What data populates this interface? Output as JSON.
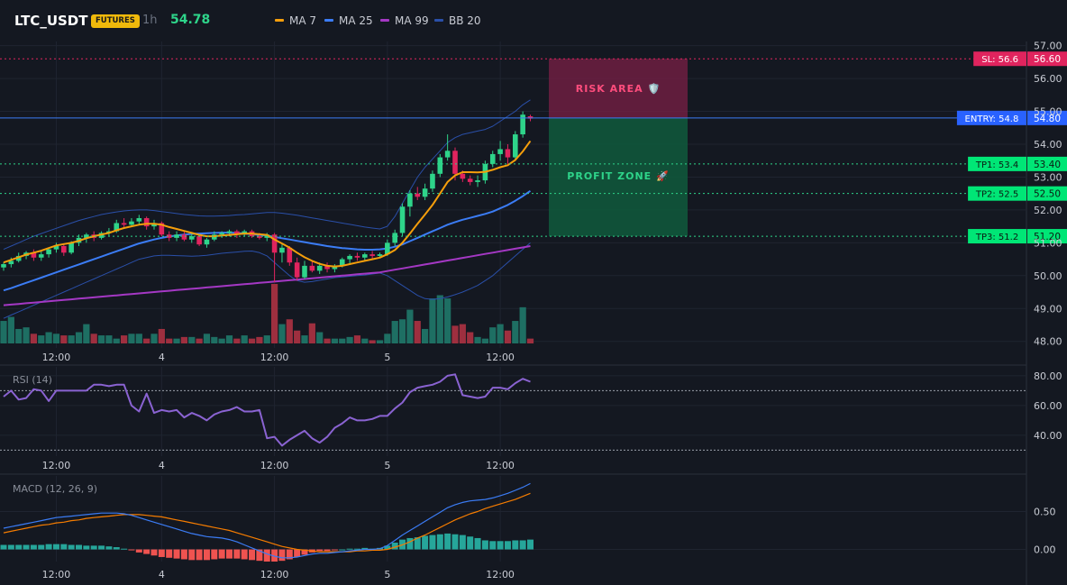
{
  "header": {
    "symbol": "LTC_USDT",
    "badge": "FUTURES",
    "timeframe": "1h",
    "last_price": "54.78",
    "legend": [
      {
        "label": "MA 7",
        "color": "#f59e0b"
      },
      {
        "label": "MA 25",
        "color": "#3b7cf5"
      },
      {
        "label": "MA 99",
        "color": "#a438c4"
      },
      {
        "label": "BB 20",
        "color": "#2a4fa8"
      }
    ]
  },
  "colors": {
    "up": "#26a69a",
    "down": "#ef5350",
    "up_candle": "#2ed48a",
    "down_candle": "#e0245e",
    "background": "#141821",
    "ma7": "#f59e0b",
    "ma25": "#3b7cf5",
    "ma99": "#a438c4",
    "bb": "#2a4fa8",
    "rsi": "#8a63d2",
    "macd": "#3b7cf5",
    "signal": "#f57c00"
  },
  "chart_data": [
    {
      "type": "candlestick",
      "name": "price",
      "ylim": [
        47.8,
        57.1
      ],
      "y_ticks": [
        "57.00",
        "56.00",
        "55.00",
        "54.00",
        "53.00",
        "52.00",
        "51.00",
        "50.00",
        "49.00",
        "48.00"
      ],
      "x_ticks": [
        "12:00",
        "4",
        "12:00",
        "5",
        "12:00"
      ],
      "x_tick_index": [
        7,
        21,
        36,
        51,
        66
      ],
      "ohlc": [
        [
          50.25,
          50.4,
          50.15,
          50.35
        ],
        [
          50.35,
          50.55,
          50.25,
          50.45
        ],
        [
          50.45,
          50.7,
          50.4,
          50.6
        ],
        [
          50.6,
          50.75,
          50.5,
          50.7
        ],
        [
          50.7,
          50.8,
          50.45,
          50.55
        ],
        [
          50.55,
          50.75,
          50.45,
          50.65
        ],
        [
          50.65,
          50.85,
          50.55,
          50.8
        ],
        [
          50.8,
          51.0,
          50.7,
          50.9
        ],
        [
          50.9,
          50.95,
          50.6,
          50.7
        ],
        [
          50.7,
          51.05,
          50.65,
          51.0
        ],
        [
          51.0,
          51.25,
          50.9,
          51.15
        ],
        [
          51.15,
          51.3,
          51.0,
          51.25
        ],
        [
          51.25,
          51.35,
          51.05,
          51.15
        ],
        [
          51.15,
          51.35,
          51.1,
          51.3
        ],
        [
          51.3,
          51.45,
          51.2,
          51.35
        ],
        [
          51.35,
          51.7,
          51.3,
          51.6
        ],
        [
          51.6,
          51.75,
          51.45,
          51.55
        ],
        [
          51.55,
          51.75,
          51.5,
          51.65
        ],
        [
          51.65,
          51.85,
          51.55,
          51.75
        ],
        [
          51.75,
          51.8,
          51.4,
          51.5
        ],
        [
          51.5,
          51.7,
          51.4,
          51.6
        ],
        [
          51.6,
          51.65,
          51.2,
          51.25
        ],
        [
          51.25,
          51.35,
          51.05,
          51.15
        ],
        [
          51.15,
          51.35,
          51.05,
          51.25
        ],
        [
          51.25,
          51.35,
          51.05,
          51.1
        ],
        [
          51.1,
          51.3,
          51.0,
          51.2
        ],
        [
          51.2,
          51.25,
          50.9,
          50.95
        ],
        [
          50.95,
          51.15,
          50.85,
          51.1
        ],
        [
          51.1,
          51.35,
          51.05,
          51.25
        ],
        [
          51.25,
          51.35,
          51.15,
          51.3
        ],
        [
          51.3,
          51.4,
          51.2,
          51.35
        ],
        [
          51.35,
          51.4,
          51.15,
          51.25
        ],
        [
          51.25,
          51.4,
          51.2,
          51.35
        ],
        [
          51.35,
          51.4,
          51.15,
          51.2
        ],
        [
          51.2,
          51.3,
          51.1,
          51.15
        ],
        [
          51.15,
          51.3,
          51.05,
          51.25
        ],
        [
          51.25,
          51.3,
          49.8,
          50.7
        ],
        [
          50.7,
          50.95,
          50.4,
          50.85
        ],
        [
          50.85,
          50.9,
          50.3,
          50.4
        ],
        [
          50.4,
          50.55,
          49.85,
          49.95
        ],
        [
          49.95,
          50.45,
          49.9,
          50.3
        ],
        [
          50.3,
          50.45,
          50.1,
          50.15
        ],
        [
          50.15,
          50.4,
          50.05,
          50.3
        ],
        [
          50.3,
          50.4,
          50.1,
          50.2
        ],
        [
          50.2,
          50.35,
          50.1,
          50.3
        ],
        [
          50.3,
          50.55,
          50.25,
          50.5
        ],
        [
          50.5,
          50.65,
          50.35,
          50.6
        ],
        [
          50.6,
          50.7,
          50.45,
          50.55
        ],
        [
          50.55,
          50.7,
          50.45,
          50.65
        ],
        [
          50.65,
          50.75,
          50.5,
          50.6
        ],
        [
          50.6,
          50.7,
          50.55,
          50.65
        ],
        [
          50.65,
          51.1,
          50.6,
          51.0
        ],
        [
          51.0,
          51.4,
          50.9,
          51.3
        ],
        [
          51.3,
          52.2,
          51.2,
          52.1
        ],
        [
          52.1,
          52.6,
          51.8,
          52.5
        ],
        [
          52.5,
          52.7,
          52.3,
          52.4
        ],
        [
          52.4,
          52.8,
          52.3,
          52.65
        ],
        [
          52.65,
          53.2,
          52.55,
          53.1
        ],
        [
          53.1,
          53.7,
          53.0,
          53.6
        ],
        [
          53.6,
          54.3,
          53.5,
          53.8
        ],
        [
          53.8,
          53.9,
          52.9,
          53.1
        ],
        [
          53.1,
          53.2,
          52.85,
          52.95
        ],
        [
          52.95,
          53.05,
          52.75,
          52.85
        ],
        [
          52.85,
          53.05,
          52.7,
          52.9
        ],
        [
          52.9,
          53.5,
          52.8,
          53.4
        ],
        [
          53.4,
          53.8,
          53.3,
          53.7
        ],
        [
          53.7,
          54.1,
          53.5,
          53.85
        ],
        [
          53.85,
          54.0,
          53.4,
          53.6
        ],
        [
          53.6,
          54.4,
          53.5,
          54.3
        ],
        [
          54.3,
          55.0,
          54.2,
          54.9
        ],
        [
          54.85,
          54.9,
          54.7,
          54.78
        ]
      ],
      "ma7": [
        50.4,
        50.48,
        50.56,
        50.64,
        50.7,
        50.76,
        50.84,
        50.92,
        50.96,
        51.0,
        51.06,
        51.14,
        51.2,
        51.25,
        51.3,
        51.38,
        51.45,
        51.5,
        51.55,
        51.58,
        51.58,
        51.55,
        51.48,
        51.42,
        51.36,
        51.3,
        51.24,
        51.2,
        51.2,
        51.22,
        51.24,
        51.26,
        51.28,
        51.28,
        51.26,
        51.24,
        51.1,
        50.98,
        50.85,
        50.7,
        50.56,
        50.45,
        50.36,
        50.3,
        50.28,
        50.3,
        50.35,
        50.4,
        50.45,
        50.5,
        50.55,
        50.65,
        50.78,
        51.0,
        51.28,
        51.58,
        51.86,
        52.15,
        52.5,
        52.85,
        53.05,
        53.15,
        53.15,
        53.14,
        53.16,
        53.22,
        53.3,
        53.36,
        53.52,
        53.78,
        54.1
      ],
      "ma25": [
        49.55,
        49.62,
        49.7,
        49.78,
        49.86,
        49.94,
        50.02,
        50.1,
        50.18,
        50.26,
        50.34,
        50.42,
        50.5,
        50.58,
        50.66,
        50.74,
        50.82,
        50.9,
        50.98,
        51.04,
        51.1,
        51.15,
        51.19,
        51.22,
        51.25,
        51.27,
        51.28,
        51.29,
        51.3,
        51.31,
        51.31,
        51.3,
        51.28,
        51.26,
        51.24,
        51.22,
        51.18,
        51.14,
        51.1,
        51.06,
        51.02,
        50.98,
        50.94,
        50.9,
        50.87,
        50.84,
        50.82,
        50.8,
        50.79,
        50.79,
        50.8,
        50.83,
        50.88,
        50.95,
        51.05,
        51.15,
        51.25,
        51.35,
        51.45,
        51.55,
        51.63,
        51.7,
        51.76,
        51.82,
        51.88,
        51.95,
        52.05,
        52.15,
        52.28,
        52.42,
        52.58
      ],
      "ma99": [
        49.1,
        49.12,
        49.14,
        49.16,
        49.18,
        49.2,
        49.22,
        49.24,
        49.26,
        49.28,
        49.3,
        49.32,
        49.34,
        49.36,
        49.38,
        49.4,
        49.42,
        49.44,
        49.46,
        49.48,
        49.5,
        49.52,
        49.54,
        49.56,
        49.58,
        49.6,
        49.62,
        49.64,
        49.66,
        49.68,
        49.7,
        49.72,
        49.74,
        49.76,
        49.78,
        49.8,
        49.82,
        49.84,
        49.86,
        49.88,
        49.9,
        49.92,
        49.94,
        49.96,
        49.98,
        50.0,
        50.02,
        50.04,
        50.06,
        50.08,
        50.1,
        50.14,
        50.18,
        50.22,
        50.26,
        50.3,
        50.34,
        50.38,
        50.42,
        50.46,
        50.5,
        50.54,
        50.58,
        50.62,
        50.66,
        50.7,
        50.74,
        50.78,
        50.82,
        50.86,
        50.9
      ],
      "bb_upper": [
        50.8,
        50.9,
        51.0,
        51.1,
        51.2,
        51.28,
        51.36,
        51.44,
        51.52,
        51.6,
        51.68,
        51.74,
        51.8,
        51.86,
        51.9,
        51.94,
        51.97,
        51.99,
        52.0,
        52.0,
        51.98,
        51.95,
        51.92,
        51.89,
        51.86,
        51.84,
        51.82,
        51.81,
        51.81,
        51.82,
        51.83,
        51.85,
        51.86,
        51.88,
        51.9,
        51.92,
        51.92,
        51.9,
        51.87,
        51.84,
        51.8,
        51.76,
        51.72,
        51.68,
        51.64,
        51.6,
        51.56,
        51.52,
        51.48,
        51.45,
        51.42,
        51.5,
        51.8,
        52.2,
        52.6,
        53.0,
        53.3,
        53.55,
        53.8,
        54.05,
        54.2,
        54.3,
        54.35,
        54.4,
        54.45,
        54.55,
        54.7,
        54.85,
        55.0,
        55.2,
        55.35
      ],
      "bb_lower": [
        48.7,
        48.8,
        48.9,
        49.0,
        49.1,
        49.2,
        49.3,
        49.4,
        49.5,
        49.6,
        49.7,
        49.8,
        49.9,
        50.0,
        50.1,
        50.2,
        50.3,
        50.4,
        50.5,
        50.55,
        50.6,
        50.62,
        50.62,
        50.61,
        50.6,
        50.59,
        50.6,
        50.62,
        50.65,
        50.68,
        50.7,
        50.72,
        50.74,
        50.75,
        50.7,
        50.6,
        50.4,
        50.2,
        50.0,
        49.85,
        49.8,
        49.82,
        49.86,
        49.9,
        49.94,
        49.96,
        49.98,
        50.0,
        50.02,
        50.05,
        50.08,
        50.0,
        49.85,
        49.7,
        49.55,
        49.4,
        49.3,
        49.28,
        49.3,
        49.35,
        49.42,
        49.5,
        49.6,
        49.7,
        49.85,
        50.0,
        50.2,
        50.4,
        50.6,
        50.8,
        51.0
      ],
      "volume": [
        0.28,
        0.33,
        0.18,
        0.2,
        0.12,
        0.1,
        0.14,
        0.12,
        0.1,
        0.1,
        0.14,
        0.24,
        0.12,
        0.1,
        0.1,
        0.06,
        0.1,
        0.12,
        0.12,
        0.06,
        0.12,
        0.18,
        0.06,
        0.06,
        0.08,
        0.08,
        0.06,
        0.12,
        0.08,
        0.06,
        0.1,
        0.06,
        0.1,
        0.06,
        0.08,
        0.1,
        0.74,
        0.24,
        0.3,
        0.16,
        0.1,
        0.25,
        0.14,
        0.06,
        0.06,
        0.06,
        0.08,
        0.1,
        0.06,
        0.04,
        0.04,
        0.12,
        0.28,
        0.3,
        0.42,
        0.28,
        0.18,
        0.56,
        0.6,
        0.56,
        0.22,
        0.24,
        0.14,
        0.08,
        0.06,
        0.2,
        0.24,
        0.16,
        0.28,
        0.45,
        0.06
      ],
      "trade_setup": {
        "sl": {
          "tag": "SL: 56.6",
          "axis": "56.60",
          "value": 56.6
        },
        "entry": {
          "tag": "ENTRY: 54.8",
          "axis": "54.80",
          "value": 54.8
        },
        "tp1": {
          "tag": "TP1: 53.4",
          "axis": "53.40",
          "value": 53.4
        },
        "tp2": {
          "tag": "TP2: 52.5",
          "axis": "52.50",
          "value": 52.5
        },
        "tp3": {
          "tag": "TP3: 51.2",
          "axis": "51.20",
          "value": 51.2
        },
        "risk_label": "RISK AREA 🛡️",
        "profit_label": "PROFIT ZONE 🚀"
      }
    },
    {
      "type": "line",
      "name": "RSI (14)",
      "ylim": [
        26,
        86
      ],
      "y_ticks": [
        "80.00",
        "60.00",
        "40.00"
      ],
      "levels": [
        70,
        30
      ],
      "x_ticks": [
        "12:00",
        "4",
        "12:00",
        "5",
        "12:00"
      ],
      "values": [
        66,
        70,
        64,
        65,
        71,
        70,
        63,
        70,
        70,
        70,
        70,
        70,
        74,
        74,
        73,
        74,
        74,
        60,
        56,
        68,
        55,
        57,
        56,
        57,
        52,
        55,
        53,
        50,
        54,
        56,
        57,
        59,
        56,
        56,
        57,
        38,
        39,
        33,
        37,
        40,
        43,
        38,
        35,
        39,
        45,
        48,
        52,
        50,
        50,
        51,
        53,
        53,
        58,
        62,
        69,
        72,
        73,
        74,
        76,
        80,
        81,
        67,
        66,
        65,
        66,
        72,
        72,
        71,
        75,
        78,
        76
      ]
    },
    {
      "type": "line",
      "name": "MACD (12, 26, 9)",
      "ylim": [
        -0.16,
        0.97
      ],
      "y_ticks": [
        "0.50",
        "0.00"
      ],
      "x_ticks": [
        "12:00",
        "4",
        "12:00",
        "5",
        "12:00"
      ],
      "macd": [
        0.28,
        0.3,
        0.32,
        0.34,
        0.36,
        0.38,
        0.4,
        0.42,
        0.43,
        0.44,
        0.45,
        0.46,
        0.47,
        0.48,
        0.48,
        0.48,
        0.47,
        0.45,
        0.42,
        0.39,
        0.36,
        0.33,
        0.3,
        0.27,
        0.24,
        0.21,
        0.19,
        0.17,
        0.16,
        0.15,
        0.13,
        0.1,
        0.06,
        0.02,
        -0.02,
        -0.06,
        -0.09,
        -0.11,
        -0.11,
        -0.1,
        -0.08,
        -0.06,
        -0.05,
        -0.05,
        -0.04,
        -0.03,
        -0.02,
        -0.01,
        0.0,
        0.0,
        0.01,
        0.05,
        0.12,
        0.19,
        0.25,
        0.31,
        0.37,
        0.43,
        0.49,
        0.55,
        0.59,
        0.62,
        0.64,
        0.65,
        0.66,
        0.68,
        0.71,
        0.74,
        0.78,
        0.82,
        0.87
      ],
      "signal": [
        0.22,
        0.24,
        0.26,
        0.28,
        0.3,
        0.32,
        0.33,
        0.35,
        0.36,
        0.38,
        0.39,
        0.41,
        0.42,
        0.43,
        0.44,
        0.45,
        0.46,
        0.46,
        0.46,
        0.45,
        0.44,
        0.43,
        0.41,
        0.39,
        0.37,
        0.35,
        0.33,
        0.31,
        0.29,
        0.27,
        0.25,
        0.22,
        0.19,
        0.16,
        0.13,
        0.1,
        0.07,
        0.04,
        0.02,
        0.0,
        -0.01,
        -0.02,
        -0.03,
        -0.03,
        -0.03,
        -0.03,
        -0.03,
        -0.02,
        -0.02,
        -0.01,
        -0.01,
        0.0,
        0.03,
        0.06,
        0.1,
        0.15,
        0.19,
        0.24,
        0.29,
        0.34,
        0.39,
        0.43,
        0.47,
        0.5,
        0.54,
        0.57,
        0.6,
        0.63,
        0.66,
        0.7,
        0.74
      ],
      "histogram": [
        0.06,
        0.06,
        0.06,
        0.06,
        0.06,
        0.06,
        0.07,
        0.07,
        0.07,
        0.06,
        0.06,
        0.05,
        0.05,
        0.05,
        0.04,
        0.03,
        0.01,
        -0.01,
        -0.04,
        -0.06,
        -0.08,
        -0.1,
        -0.11,
        -0.12,
        -0.13,
        -0.14,
        -0.14,
        -0.14,
        -0.13,
        -0.12,
        -0.12,
        -0.12,
        -0.13,
        -0.14,
        -0.15,
        -0.16,
        -0.16,
        -0.15,
        -0.13,
        -0.1,
        -0.07,
        -0.04,
        -0.02,
        -0.02,
        -0.01,
        0.0,
        0.01,
        0.01,
        0.02,
        0.01,
        0.02,
        0.05,
        0.09,
        0.13,
        0.15,
        0.16,
        0.18,
        0.19,
        0.2,
        0.21,
        0.2,
        0.19,
        0.17,
        0.15,
        0.12,
        0.11,
        0.11,
        0.11,
        0.12,
        0.12,
        0.13
      ]
    }
  ]
}
